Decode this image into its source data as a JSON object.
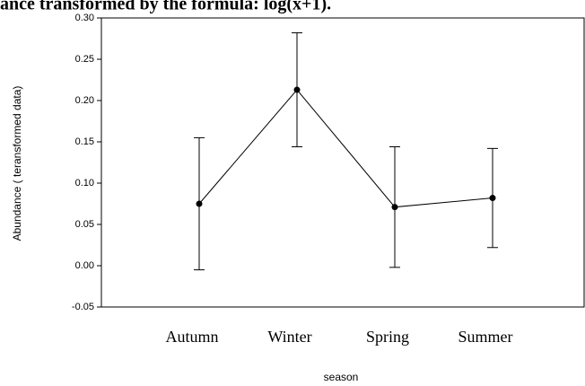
{
  "chart_data": {
    "type": "line",
    "title": "ance transformed by the formula: log(x+1).",
    "x_label": "season",
    "y_label": "Abundance ( teransformed data)",
    "categories": [
      "Autumn",
      "Winter",
      "Spring",
      "Summer"
    ],
    "series": [
      {
        "color": "#000000",
        "values": [
          0.075,
          0.213,
          0.071,
          0.082
        ],
        "errors": [
          0.08,
          0.069,
          0.073,
          0.06
        ]
      }
    ],
    "ylim": [
      -0.05,
      0.3
    ],
    "yticks": [
      {
        "value": -0.05,
        "label": "-0.05"
      },
      {
        "value": 0,
        "label": "0.00"
      },
      {
        "value": 0.05,
        "label": "0.05"
      },
      {
        "value": 0.1,
        "label": "0.10"
      },
      {
        "value": 0.15,
        "label": "0.15"
      },
      {
        "value": 0.2,
        "label": "0.20"
      },
      {
        "value": 0.25,
        "label": "0.25"
      },
      {
        "value": 0.3,
        "label": "0.30"
      }
    ]
  }
}
